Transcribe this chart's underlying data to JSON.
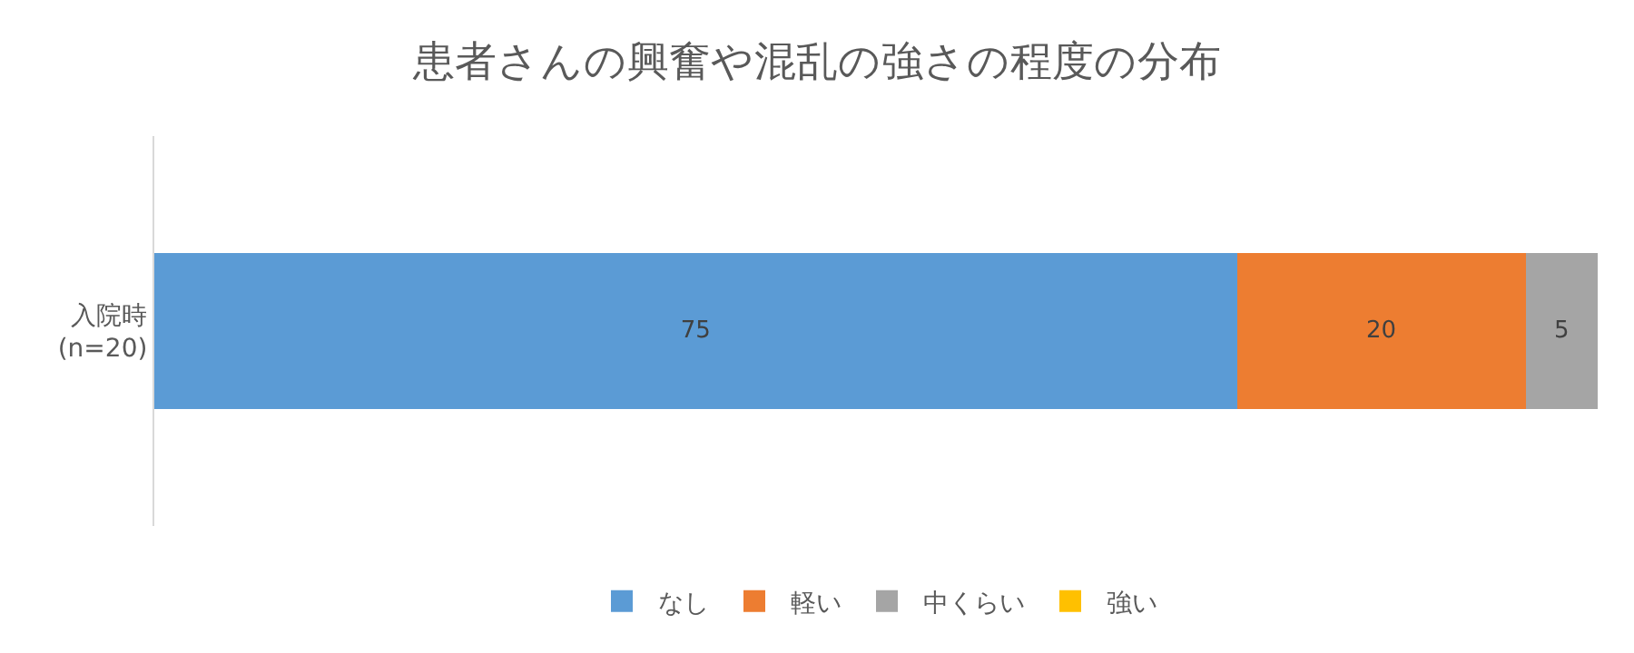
{
  "chart_data": {
    "type": "bar",
    "title": "患者さんの興奮や混乱の強さの程度の分布",
    "orientation": "horizontal",
    "stacked": true,
    "categories": [
      "入院時\n(n=20)"
    ],
    "xlim": [
      0,
      100
    ],
    "tick_labels": "y",
    "legend": "bottom",
    "series": [
      {
        "name": "なし",
        "color": "#5b9bd5",
        "values": [
          75
        ],
        "value_labels": [
          "75"
        ]
      },
      {
        "name": "軽い",
        "color": "#ed7d31",
        "values": [
          20
        ],
        "value_labels": [
          "20"
        ]
      },
      {
        "name": "中くらい",
        "color": "#a5a5a5",
        "values": [
          5
        ],
        "value_labels": [
          "5"
        ]
      },
      {
        "name": "強い",
        "color": "#ffc000",
        "values": [
          0
        ],
        "value_labels": [
          null
        ]
      }
    ]
  }
}
